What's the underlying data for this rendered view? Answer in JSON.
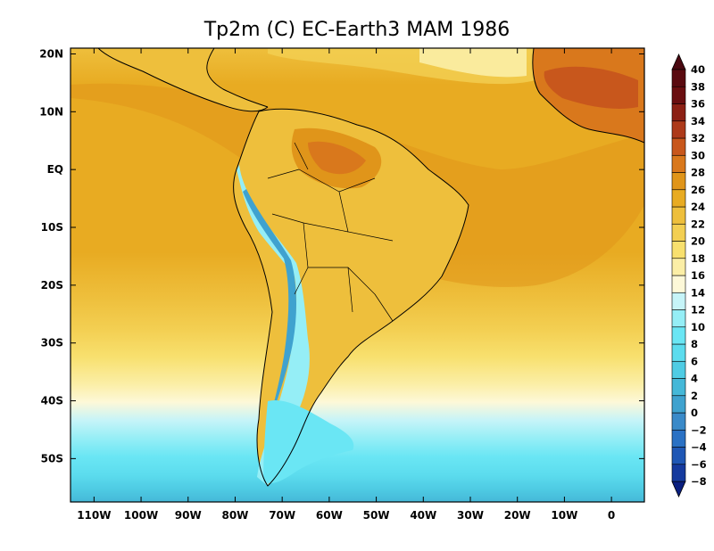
{
  "title": "Tp2m (C)  EC-Earth3 MAM 1986",
  "map": {
    "lon_range": [
      -115,
      7
    ],
    "lat_range": [
      -57.5,
      21
    ],
    "lon_ticks": [
      {
        "value": -110,
        "label": "110W"
      },
      {
        "value": -100,
        "label": "100W"
      },
      {
        "value": -90,
        "label": "90W"
      },
      {
        "value": -80,
        "label": "80W"
      },
      {
        "value": -70,
        "label": "70W"
      },
      {
        "value": -60,
        "label": "60W"
      },
      {
        "value": -50,
        "label": "50W"
      },
      {
        "value": -40,
        "label": "40W"
      },
      {
        "value": -30,
        "label": "30W"
      },
      {
        "value": -20,
        "label": "20W"
      },
      {
        "value": -10,
        "label": "10W"
      },
      {
        "value": 0,
        "label": "0"
      }
    ],
    "lat_ticks": [
      {
        "value": 20,
        "label": "20N"
      },
      {
        "value": 10,
        "label": "10N"
      },
      {
        "value": 0,
        "label": "EQ"
      },
      {
        "value": -10,
        "label": "10S"
      },
      {
        "value": -20,
        "label": "20S"
      },
      {
        "value": -30,
        "label": "30S"
      },
      {
        "value": -40,
        "label": "40S"
      },
      {
        "value": -50,
        "label": "50S"
      }
    ]
  },
  "colorbar": {
    "levels": [
      "-8",
      "-6",
      "-4",
      "-2",
      "0",
      "2",
      "4",
      "6",
      "8",
      "10",
      "12",
      "14",
      "16",
      "18",
      "20",
      "22",
      "24",
      "26",
      "28",
      "30",
      "32",
      "34",
      "36",
      "38",
      "40"
    ],
    "colors": [
      "#0a1f80",
      "#153a9e",
      "#1f57b5",
      "#2a71c4",
      "#3a8ac9",
      "#3fa2cf",
      "#45b8d8",
      "#4fcce4",
      "#5cdcee",
      "#6ae6f4",
      "#95eef6",
      "#c6f4f8",
      "#fdf8d8",
      "#fbeea6",
      "#f8e06e",
      "#f3cf52",
      "#eebf3c",
      "#e8ab22",
      "#e0951a",
      "#d9781c",
      "#c8571c",
      "#ad3a1a",
      "#8c2014",
      "#6a0e10",
      "#5a0a10",
      "#4a0810"
    ]
  }
}
